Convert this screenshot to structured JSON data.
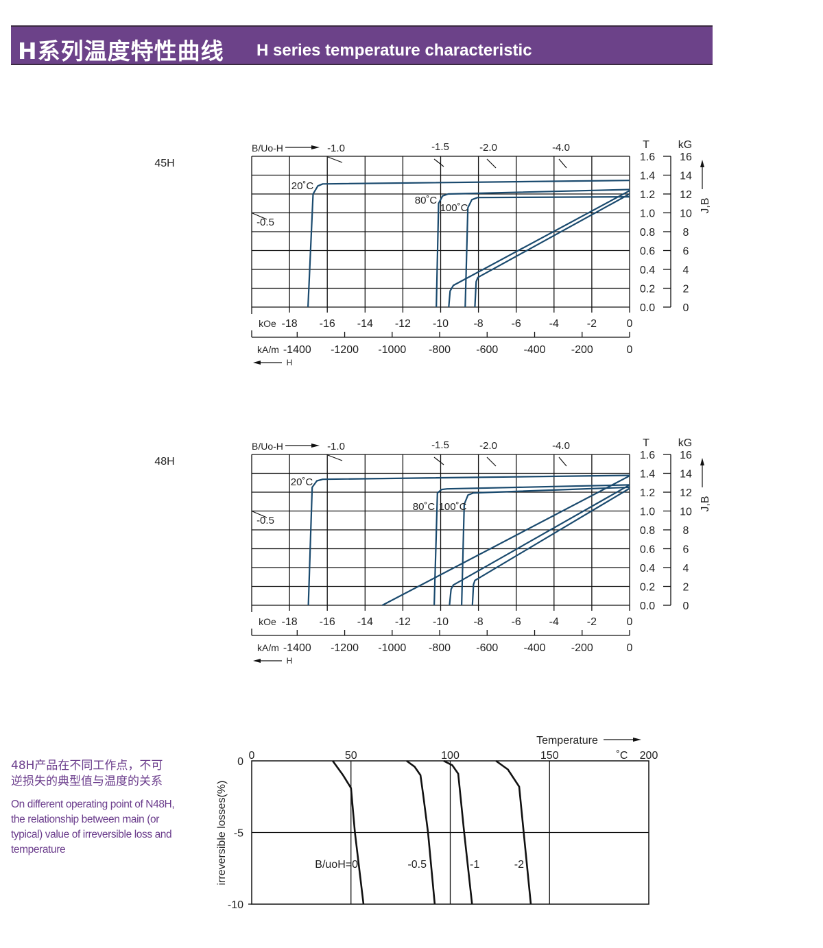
{
  "header": {
    "title_cn": "H系列温度特性曲线",
    "title_en": "H  series temperature characteristic",
    "background_color": "#6c4289"
  },
  "side_note": {
    "title_cn_line1": "48H产品在不同工作点，不可",
    "title_cn_line2": "逆损失的典型值与温度的关系",
    "text_en": "On different operating point of N48H, the relationship between main (or typical) value of irreversible loss and temperature",
    "color": "#6b3d8c"
  },
  "chart_data": [
    {
      "type": "line",
      "title": "45H",
      "top_label": "B/Uo-H",
      "xlabel_koe": "kOe",
      "xlabel_kam": "kA/m",
      "h_label": "H",
      "y_unit_t": "T",
      "y_unit_kg": "kG",
      "ylabel": "J,B",
      "xlim": [
        -20,
        0
      ],
      "ylim": [
        0,
        1.6
      ],
      "grid": true,
      "x_ticks_koe": [
        "-18",
        "-16",
        "-14",
        "-12",
        "-10",
        "-8",
        "-6",
        "-4",
        "-2",
        "0"
      ],
      "x_ticks_kam": [
        "-1400",
        "-1200",
        "-1000",
        "-800",
        "-600",
        "-400",
        "-200",
        "0"
      ],
      "y_ticks_t": [
        "0.0",
        "0.2",
        "0.4",
        "0.6",
        "0.8",
        "1.0",
        "1.2",
        "1.4",
        "1.6"
      ],
      "y_ticks_kg": [
        "0",
        "2",
        "4",
        "6",
        "8",
        "10",
        "12",
        "14",
        "16"
      ],
      "permeance_labels": [
        "-1.0",
        "-1.5",
        "-2.0",
        "-4.0",
        "-0.5"
      ],
      "line_color": "#1a4a6e",
      "series": [
        {
          "name": "20˚C",
          "points": [
            [
              -17.02,
              0
            ],
            [
              -16.75,
              1.2
            ],
            [
              -16.5,
              1.285
            ],
            [
              -16.24,
              1.307
            ],
            [
              0,
              1.344
            ]
          ]
        },
        {
          "name": "80˚C",
          "points": [
            [
              -10.23,
              0
            ],
            [
              -10.11,
              1.1
            ],
            [
              -9.9,
              1.18
            ],
            [
              -9.6,
              1.2
            ],
            [
              0,
              1.247
            ]
          ]
        },
        {
          "name": "100˚C",
          "points": [
            [
              -8.7,
              0
            ],
            [
              -8.56,
              1.053
            ],
            [
              -8.35,
              1.14
            ],
            [
              -8.05,
              1.162
            ],
            [
              0,
              1.17
            ]
          ]
        },
        {
          "points": [
            [
              -9.57,
              0
            ],
            [
              -9.5,
              0.17
            ],
            [
              -9.33,
              0.23
            ],
            [
              0,
              1.235
            ]
          ]
        },
        {
          "points": [
            [
              -8.19,
              0
            ],
            [
              -8.12,
              0.27
            ],
            [
              -8.03,
              0.315
            ],
            [
              0,
              1.2
            ]
          ]
        }
      ]
    },
    {
      "type": "line",
      "title": "48H",
      "top_label": "B/Uo-H",
      "xlabel_koe": "kOe",
      "xlabel_kam": "kA/m",
      "h_label": "H",
      "y_unit_t": "T",
      "y_unit_kg": "kG",
      "ylabel": "J,B",
      "xlim": [
        -20,
        0
      ],
      "ylim": [
        0,
        1.6
      ],
      "grid": true,
      "x_ticks_koe": [
        "-18",
        "-16",
        "-14",
        "-12",
        "-10",
        "-8",
        "-6",
        "-4",
        "-2",
        "0"
      ],
      "x_ticks_kam": [
        "-1400",
        "-1200",
        "-1000",
        "-800",
        "-600",
        "-400",
        "-200",
        "0"
      ],
      "y_ticks_t": [
        "0.0",
        "0.2",
        "0.4",
        "0.6",
        "0.8",
        "1.0",
        "1.2",
        "1.4",
        "1.6"
      ],
      "y_ticks_kg": [
        "0",
        "2",
        "4",
        "6",
        "8",
        "10",
        "12",
        "14",
        "16"
      ],
      "permeance_labels": [
        "-1.0",
        "-1.5",
        "-2.0",
        "-4.0",
        "-0.5"
      ],
      "line_color": "#1a4a6e",
      "series": [
        {
          "name": "20˚C",
          "points": [
            [
              -17.0,
              0
            ],
            [
              -16.8,
              1.252
            ],
            [
              -16.55,
              1.32
            ],
            [
              -16.24,
              1.337
            ],
            [
              0,
              1.378
            ]
          ]
        },
        {
          "name": "80˚C",
          "points": [
            [
              -10.34,
              0
            ],
            [
              -10.17,
              1.192
            ],
            [
              -9.95,
              1.228
            ],
            [
              -9.66,
              1.235
            ],
            [
              0,
              1.277
            ]
          ]
        },
        {
          "name": "100˚C",
          "points": [
            [
              -8.89,
              0
            ],
            [
              -8.75,
              1.071
            ],
            [
              -8.55,
              1.17
            ],
            [
              -8.26,
              1.192
            ],
            [
              0,
              1.252
            ]
          ]
        },
        {
          "points": [
            [
              -13.09,
              0
            ],
            [
              0,
              1.373
            ]
          ]
        },
        {
          "points": [
            [
              -9.53,
              0
            ],
            [
              -9.45,
              0.17
            ],
            [
              -9.33,
              0.215
            ],
            [
              0,
              1.277
            ]
          ]
        },
        {
          "points": [
            [
              -8.32,
              0
            ],
            [
              -8.26,
              0.22
            ],
            [
              -8.19,
              0.263
            ],
            [
              0,
              1.24
            ]
          ]
        }
      ]
    },
    {
      "type": "line",
      "xlabel": "Temperature",
      "x_unit": "˚C",
      "ylabel": "irreversible  losses(%)",
      "xlim": [
        0,
        200
      ],
      "ylim": [
        -10,
        0
      ],
      "grid": true,
      "x_ticks": [
        "0",
        "50",
        "100",
        "150",
        "200"
      ],
      "y_ticks": [
        "0",
        "-5",
        "-10"
      ],
      "line_color": "#111111",
      "series": [
        {
          "name": "B/uoH=0",
          "points": [
            [
              40.8,
              0
            ],
            [
              46,
              -1
            ],
            [
              50,
              -1.9
            ],
            [
              52,
              -5
            ],
            [
              56.3,
              -10
            ]
          ]
        },
        {
          "name": "-0.5",
          "points": [
            [
              78,
              0
            ],
            [
              82,
              -0.4
            ],
            [
              85,
              -1.0
            ],
            [
              86.5,
              -2.5
            ],
            [
              88.8,
              -5
            ],
            [
              92.2,
              -10
            ]
          ]
        },
        {
          "name": "-1",
          "points": [
            [
              96.7,
              0
            ],
            [
              101,
              -0.3
            ],
            [
              104,
              -0.9
            ],
            [
              107,
              -5
            ],
            [
              111,
              -10
            ]
          ]
        },
        {
          "name": "-2",
          "points": [
            [
              123,
              0
            ],
            [
              129,
              -0.6
            ],
            [
              134.7,
              -1.8
            ],
            [
              137,
              -5
            ],
            [
              140.6,
              -10
            ]
          ]
        }
      ]
    }
  ]
}
